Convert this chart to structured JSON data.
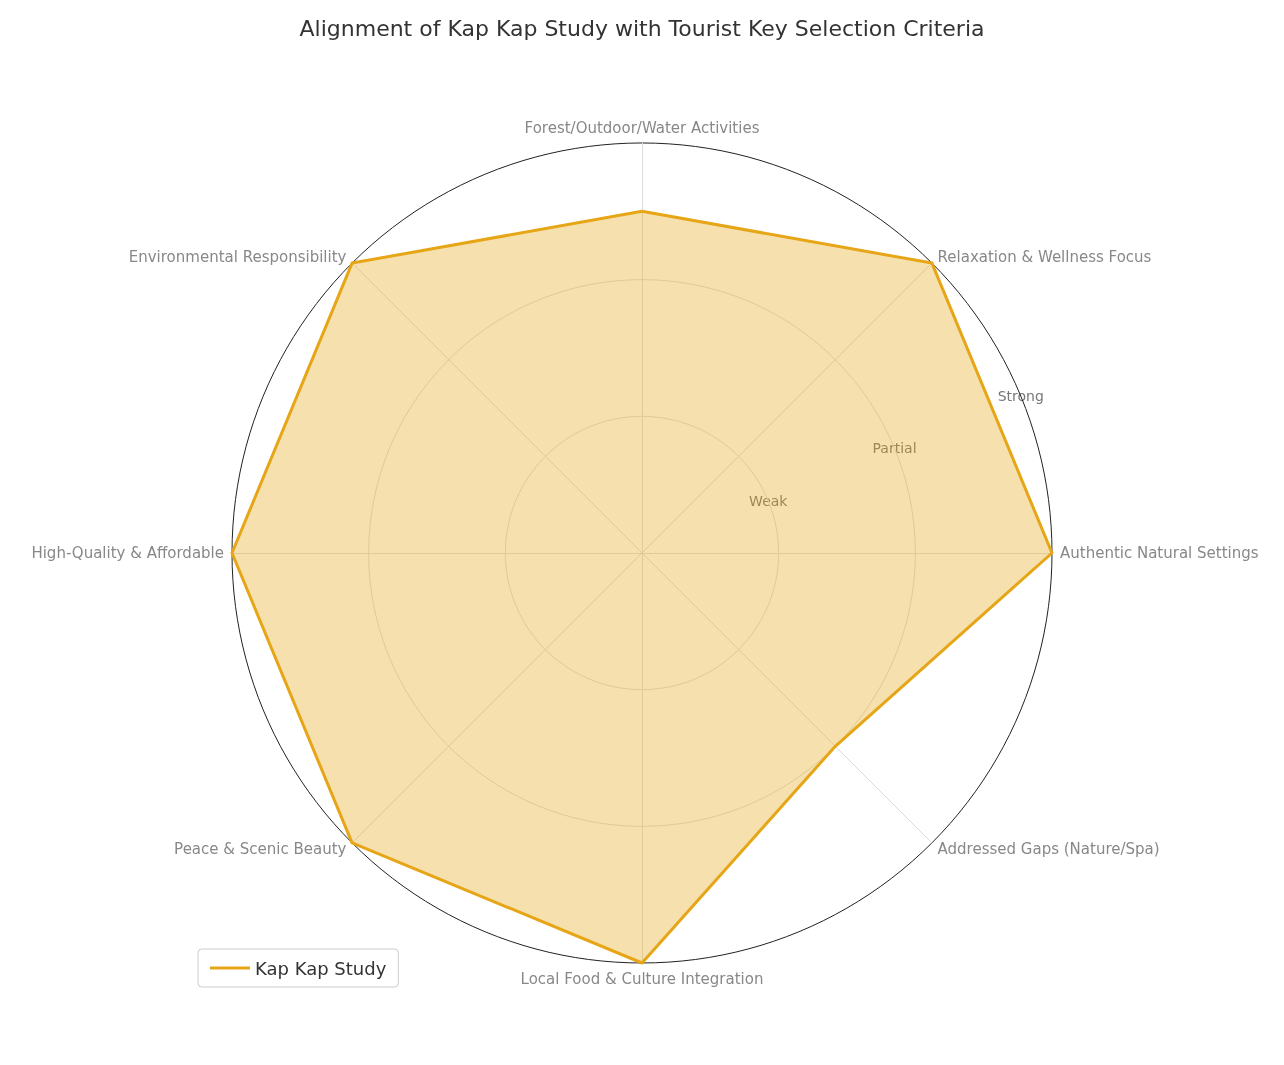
{
  "chart_data": {
    "type": "radar",
    "title": "Alignment of Kap Kap Study with Tourist Key Selection Criteria",
    "categories": [
      "Forest/Outdoor/Water Activities",
      "Relaxation & Wellness Focus",
      "Authentic Natural Settings",
      "Addressed Gaps (Nature/Spa)",
      "Local Food & Culture Integration",
      "Peace & Scenic Beauty",
      "High-Quality & Affordable",
      "Environmental Responsibility"
    ],
    "series": [
      {
        "name": "Kap Kap Study",
        "color": "#e6a617",
        "values": [
          2.5,
          3,
          3,
          2,
          3,
          3,
          3,
          3
        ]
      }
    ],
    "ylim": [
      0,
      3
    ],
    "yticks": [
      {
        "value": 1,
        "label": "Weak"
      },
      {
        "value": 2,
        "label": "Partial"
      },
      {
        "value": 3,
        "label": "Strong"
      }
    ],
    "grid": true,
    "legend": "bottom left"
  }
}
